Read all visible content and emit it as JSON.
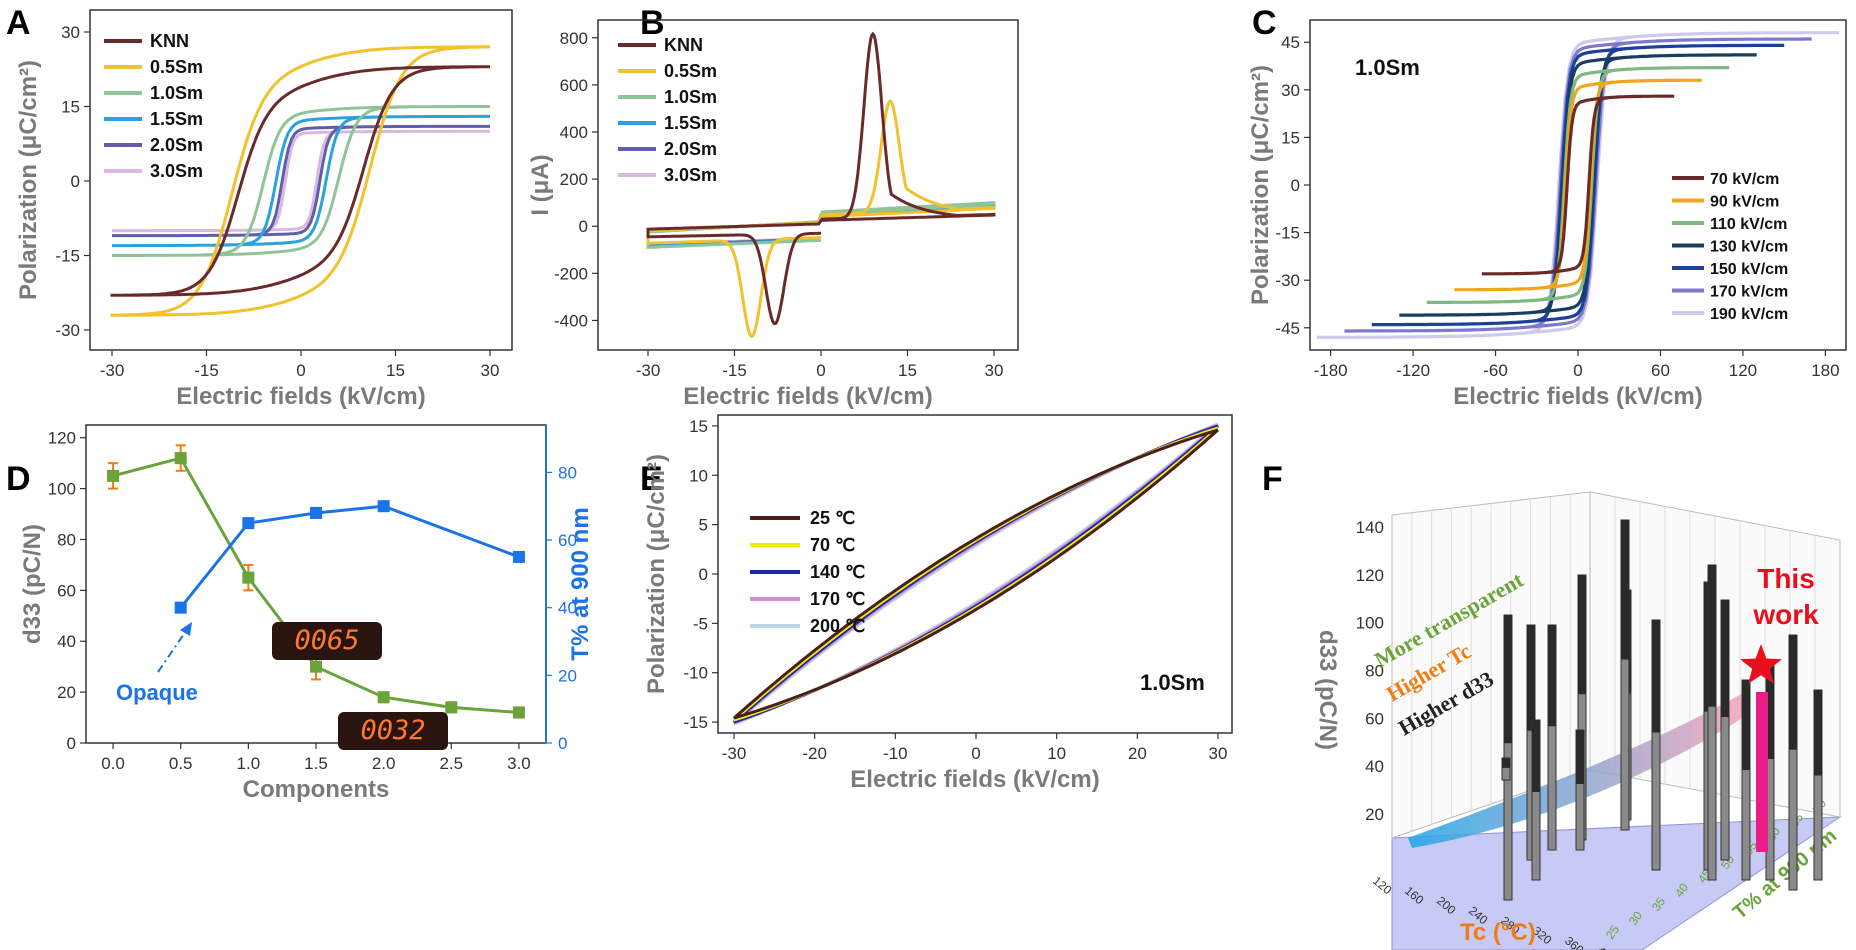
{
  "panel_labels": [
    "A",
    "B",
    "C",
    "D",
    "E",
    "F"
  ],
  "colors": {
    "KNN": "#6b2a2a",
    "0.5Sm": "#f2c12e",
    "1.0Sm": "#8fc49a",
    "1.5Sm": "#2aa2e0",
    "2.0Sm": "#5e5fa8",
    "3.0Sm": "#d9b8e2",
    "green": "#6aa33a",
    "blue": "#1a73e8",
    "orange": "#f07d12",
    "red": "#e8101d"
  },
  "chart_data": [
    {
      "panel": "A",
      "type": "line",
      "xlabel": "Electric fields (kV/cm)",
      "ylabel": "Polarization (μC/cm²)",
      "xlim": [
        -30,
        30
      ],
      "ylim": [
        -30,
        30
      ],
      "xticks": [
        -30,
        -15,
        0,
        15,
        30
      ],
      "yticks": [
        -30,
        -15,
        0,
        15,
        30
      ],
      "series": [
        {
          "name": "KNN",
          "emax": 30,
          "pmax": 23,
          "pr": 18,
          "ec": 10
        },
        {
          "name": "0.5Sm",
          "emax": 30,
          "pmax": 27,
          "pr": 17,
          "ec": 11
        },
        {
          "name": "1.0Sm",
          "emax": 30,
          "pmax": 15,
          "pr": 5.5,
          "ec": 6
        },
        {
          "name": "1.5Sm",
          "emax": 30,
          "pmax": 13,
          "pr": 3.5,
          "ec": 4
        },
        {
          "name": "2.0Sm",
          "emax": 30,
          "pmax": 11,
          "pr": 2,
          "ec": 3
        },
        {
          "name": "3.0Sm",
          "emax": 30,
          "pmax": 10,
          "pr": 1.5,
          "ec": 2.5
        }
      ]
    },
    {
      "panel": "B",
      "type": "line",
      "xlabel": "Electric fields (kV/cm)",
      "ylabel": "I (μA)",
      "xlim": [
        -30,
        30
      ],
      "ylim": [
        -500,
        850
      ],
      "xticks": [
        -30,
        -15,
        0,
        15,
        30
      ],
      "yticks": [
        -400,
        -200,
        0,
        200,
        400,
        600,
        800
      ],
      "series": [
        {
          "name": "KNN",
          "peak_x": 9,
          "peak_y": 830,
          "neg_peak_x": -8,
          "neg_peak_y": -430,
          "base": 50
        },
        {
          "name": "0.5Sm",
          "peak_x": 12,
          "peak_y": 550,
          "neg_peak_x": -12,
          "neg_peak_y": -490,
          "base": 80
        },
        {
          "name": "1.0Sm",
          "peak_x": 0,
          "peak_y": 100,
          "neg_peak_x": 0,
          "neg_peak_y": -100,
          "base": 100
        },
        {
          "name": "1.5Sm",
          "peak_x": 0,
          "peak_y": 95,
          "neg_peak_x": 0,
          "neg_peak_y": -95,
          "base": 95
        },
        {
          "name": "2.0Sm",
          "peak_x": 0,
          "peak_y": 90,
          "neg_peak_x": 0,
          "neg_peak_y": -90,
          "base": 90
        },
        {
          "name": "3.0Sm",
          "peak_x": 0,
          "peak_y": 85,
          "neg_peak_x": 0,
          "neg_peak_y": -85,
          "base": 85
        }
      ]
    },
    {
      "panel": "C",
      "type": "line",
      "annotation": "1.0Sm",
      "xlabel": "Electric fields (kV/cm)",
      "ylabel": "Polarization (μC/cm²)",
      "xlim": [
        -195,
        195
      ],
      "ylim": [
        -52,
        52
      ],
      "xticks": [
        -180,
        -120,
        -60,
        0,
        60,
        120,
        180
      ],
      "yticks": [
        -45,
        -30,
        -15,
        0,
        15,
        30,
        45
      ],
      "series": [
        {
          "name": "70 kV/cm",
          "color": "#6b2a2a",
          "emax": 70,
          "pmax": 28,
          "pr": 9,
          "ec": 8
        },
        {
          "name": "90 kV/cm",
          "color": "#f2a51a",
          "emax": 90,
          "pmax": 33,
          "pr": 10,
          "ec": 9
        },
        {
          "name": "110 kV/cm",
          "color": "#7fb880",
          "emax": 110,
          "pmax": 37,
          "pr": 11,
          "ec": 10
        },
        {
          "name": "130 kV/cm",
          "color": "#173e5c",
          "emax": 130,
          "pmax": 41,
          "pr": 12,
          "ec": 11
        },
        {
          "name": "150 kV/cm",
          "color": "#1b3f9a",
          "emax": 150,
          "pmax": 44,
          "pr": 13,
          "ec": 12
        },
        {
          "name": "170 kV/cm",
          "color": "#7c78cc",
          "emax": 170,
          "pmax": 46,
          "pr": 14,
          "ec": 13
        },
        {
          "name": "190 kV/cm",
          "color": "#cfc9ee",
          "emax": 190,
          "pmax": 48,
          "pr": 15,
          "ec": 14
        }
      ]
    },
    {
      "panel": "D",
      "type": "line",
      "xlabel": "Components",
      "ylabel": "d33 (pC/N)",
      "ylabel_right": "T% at 900 nm",
      "xlim": [
        -0.2,
        3.2
      ],
      "ylim": [
        0,
        125
      ],
      "ylim_right": [
        0,
        94
      ],
      "xticks": [
        0.0,
        0.5,
        1.0,
        1.5,
        2.0,
        2.5,
        3.0
      ],
      "yticks": [
        0,
        20,
        40,
        60,
        80,
        100,
        120
      ],
      "yticks_right": [
        0,
        20,
        40,
        60,
        80
      ],
      "d33": {
        "x": [
          0,
          0.5,
          1.0,
          1.5,
          2.0,
          2.5,
          3.0
        ],
        "y": [
          105,
          112,
          65,
          30,
          18,
          14,
          12
        ],
        "err": [
          5,
          5,
          5,
          5,
          2,
          2,
          2
        ]
      },
      "transmittance": {
        "x": [
          0.5,
          1.0,
          1.5,
          2.0,
          3.0
        ],
        "y": [
          40,
          65,
          68,
          70,
          55
        ]
      },
      "annotation": "Opaque",
      "display_1": "0065",
      "display_2": "0032"
    },
    {
      "panel": "E",
      "type": "line",
      "annotation": "1.0Sm",
      "xlabel": "Electric fields (kV/cm)",
      "ylabel": "Polarization (μC/cm²)",
      "xlim": [
        -30,
        30
      ],
      "ylim": [
        -15.5,
        15.5
      ],
      "xticks": [
        -30,
        -20,
        -10,
        0,
        10,
        20,
        30
      ],
      "yticks": [
        -15,
        -10,
        -5,
        0,
        5,
        10,
        15
      ],
      "series": [
        {
          "name": "25 ℃",
          "color": "#4a1f18",
          "pmax": 14.6,
          "pr": 4.0,
          "ec": 4
        },
        {
          "name": "70 ℃",
          "color": "#f0ec10",
          "pmax": 14.8,
          "pr": 3.8,
          "ec": 4
        },
        {
          "name": "140 ℃",
          "color": "#1628a8",
          "pmax": 15.0,
          "pr": 3.6,
          "ec": 4
        },
        {
          "name": "170 ℃",
          "color": "#d98ad6",
          "pmax": 15.1,
          "pr": 3.4,
          "ec": 4
        },
        {
          "name": "200 ℃",
          "color": "#bcd7e6",
          "pmax": 15.2,
          "pr": 3.2,
          "ec": 4
        }
      ]
    },
    {
      "panel": "F",
      "type": "scatter",
      "zlabel": "d33 (pC/N)",
      "xlabel": "Tc (°C)",
      "ylabel": "T% at 900 nm",
      "zticks": [
        20,
        40,
        60,
        80,
        100,
        120,
        140
      ],
      "xticks": [
        120,
        160,
        200,
        240,
        280,
        320,
        360,
        400
      ],
      "yticks": [
        25,
        30,
        35,
        40,
        45,
        50,
        55,
        60,
        65,
        70
      ],
      "arrow_labels": [
        "More transparent",
        "Higher Tc",
        "Higher d33"
      ],
      "highlight": "This work"
    }
  ]
}
